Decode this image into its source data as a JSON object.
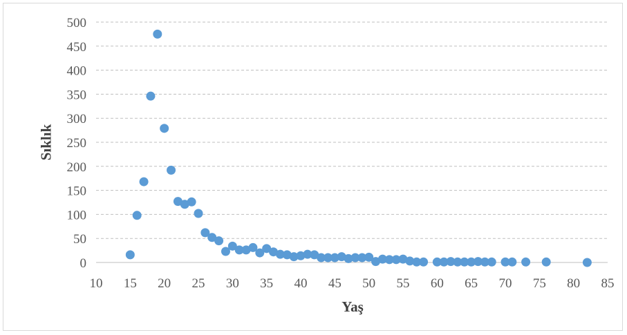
{
  "chart_data": {
    "type": "scatter",
    "title": "",
    "xlabel": "Yaş",
    "ylabel": "Sıklık",
    "xlim": [
      10,
      85
    ],
    "ylim": [
      0,
      500
    ],
    "x_ticks": [
      10,
      15,
      20,
      25,
      30,
      35,
      40,
      45,
      50,
      55,
      60,
      65,
      70,
      75,
      80,
      85
    ],
    "y_ticks": [
      0,
      50,
      100,
      150,
      200,
      250,
      300,
      350,
      400,
      450,
      500
    ],
    "grid": "horizontal dashed",
    "legend": "none",
    "marker_color": "#5b9bd5",
    "points": [
      [
        15,
        16
      ],
      [
        16,
        98
      ],
      [
        17,
        168
      ],
      [
        18,
        346
      ],
      [
        19,
        475
      ],
      [
        20,
        279
      ],
      [
        21,
        192
      ],
      [
        22,
        127
      ],
      [
        23,
        121
      ],
      [
        24,
        126
      ],
      [
        25,
        102
      ],
      [
        26,
        62
      ],
      [
        27,
        52
      ],
      [
        28,
        45
      ],
      [
        29,
        23
      ],
      [
        30,
        34
      ],
      [
        31,
        26
      ],
      [
        32,
        26
      ],
      [
        33,
        31
      ],
      [
        34,
        20
      ],
      [
        35,
        29
      ],
      [
        36,
        22
      ],
      [
        37,
        17
      ],
      [
        38,
        16
      ],
      [
        39,
        12
      ],
      [
        40,
        14
      ],
      [
        41,
        17
      ],
      [
        42,
        16
      ],
      [
        43,
        10
      ],
      [
        44,
        10
      ],
      [
        45,
        10
      ],
      [
        46,
        12
      ],
      [
        47,
        8
      ],
      [
        48,
        10
      ],
      [
        49,
        10
      ],
      [
        50,
        11
      ],
      [
        51,
        2
      ],
      [
        52,
        7
      ],
      [
        53,
        6
      ],
      [
        54,
        6
      ],
      [
        55,
        7
      ],
      [
        56,
        3
      ],
      [
        57,
        1
      ],
      [
        58,
        1
      ],
      [
        60,
        1
      ],
      [
        61,
        1
      ],
      [
        62,
        2
      ],
      [
        63,
        1
      ],
      [
        64,
        1
      ],
      [
        65,
        1
      ],
      [
        66,
        2
      ],
      [
        67,
        1
      ],
      [
        68,
        1
      ],
      [
        70,
        1
      ],
      [
        71,
        1
      ],
      [
        73,
        1
      ],
      [
        76,
        1
      ],
      [
        82,
        0
      ]
    ]
  }
}
